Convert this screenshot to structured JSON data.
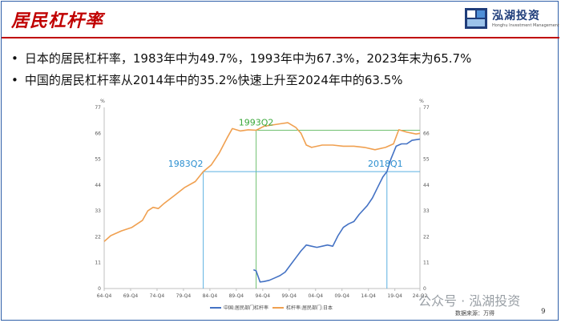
{
  "title": "居民杠杆率",
  "logo": {
    "name": "泓湖投资",
    "sub": "Honghu Investment Management"
  },
  "bullets": [
    "日本的居民杠杆率，1983年中为49.7%，1993年中为67.3%，2023年末为65.7%",
    "中国的居民杠杆率从2014年中的35.2%快速上升至2024年中的63.5%"
  ],
  "watermark": "公众号 · 泓湖投资",
  "source": "数据来源：万得",
  "page_number": "9",
  "colors": {
    "title": "#c00000",
    "china": "#4472c4",
    "japan": "#f0a050",
    "green": "#70c070",
    "blue_annot": "#5bb0e0"
  },
  "chart_data": {
    "type": "line",
    "ylim": [
      0,
      77
    ],
    "yticks": [
      "0",
      "11",
      "22",
      "33",
      "44",
      "55",
      "66",
      "77"
    ],
    "y_unit": "%",
    "xticks": [
      "64-Q4",
      "69-Q4",
      "74-Q4",
      "79-Q4",
      "84-Q4",
      "89-Q4",
      "94-Q4",
      "99-Q4",
      "04-Q4",
      "09-Q4",
      "14-Q4",
      "19-Q4",
      "24-Q2"
    ],
    "annotations": [
      {
        "label": "1983Q2",
        "x": 1983.5,
        "y": 49.7,
        "color": "#2b8fd0"
      },
      {
        "label": "1993Q2",
        "x": 1993.5,
        "y": 67.3,
        "color": "#3aa83a"
      },
      {
        "label": "2018Q1",
        "x": 2018.25,
        "y": 49.7,
        "color": "#2b8fd0"
      }
    ],
    "series": [
      {
        "name": "中国:居民部门杠杆率",
        "color": "#4472c4",
        "x": [
          1993.0,
          1993.5,
          1994.25,
          1995.0,
          1996.0,
          1997.0,
          1998.0,
          1999.0,
          2000.0,
          2001.0,
          2002.0,
          2003.0,
          2004.0,
          2005.0,
          2006.0,
          2007.0,
          2008.0,
          2009.0,
          2010.0,
          2011.0,
          2012.0,
          2013.0,
          2014.5,
          2015.5,
          2016.5,
          2017.5,
          2018.25,
          2019.0,
          2020.0,
          2021.0,
          2022.0,
          2023.0,
          2024.5
        ],
        "y": [
          8.0,
          7.5,
          2.8,
          3.0,
          3.5,
          4.5,
          5.5,
          7.0,
          10.0,
          13.0,
          16.0,
          18.5,
          18.0,
          17.5,
          18.0,
          18.5,
          18.0,
          22.5,
          26.0,
          27.5,
          28.5,
          31.5,
          35.2,
          38.5,
          43.0,
          47.5,
          49.7,
          55.0,
          60.5,
          61.5,
          61.5,
          63.0,
          63.5
        ]
      },
      {
        "name": "杠杆率:居民部门:日本",
        "color": "#f0a050",
        "x": [
          1964.75,
          1966.0,
          1968.0,
          1970.0,
          1972.0,
          1973.0,
          1974.0,
          1975.0,
          1976.0,
          1978.0,
          1980.0,
          1982.0,
          1983.5,
          1985.0,
          1986.5,
          1988.0,
          1989.0,
          1990.5,
          1992.0,
          1993.5,
          1995.0,
          1996.5,
          1998.0,
          1999.5,
          2001.0,
          2002.0,
          2003.0,
          2004.0,
          2006.0,
          2008.0,
          2010.0,
          2012.0,
          2014.0,
          2016.0,
          2018.0,
          2019.5,
          2020.5,
          2022.0,
          2023.75,
          2024.5
        ],
        "y": [
          20.0,
          22.5,
          24.5,
          26.0,
          29.0,
          33.0,
          34.5,
          34.0,
          36.0,
          39.5,
          43.0,
          45.5,
          49.7,
          52.5,
          57.5,
          64.0,
          68.0,
          67.0,
          67.5,
          67.3,
          69.0,
          69.5,
          70.0,
          70.5,
          68.5,
          66.0,
          61.0,
          60.0,
          61.0,
          61.0,
          60.5,
          60.5,
          60.0,
          59.0,
          60.0,
          61.5,
          67.5,
          66.5,
          65.7,
          66.0
        ]
      }
    ]
  }
}
